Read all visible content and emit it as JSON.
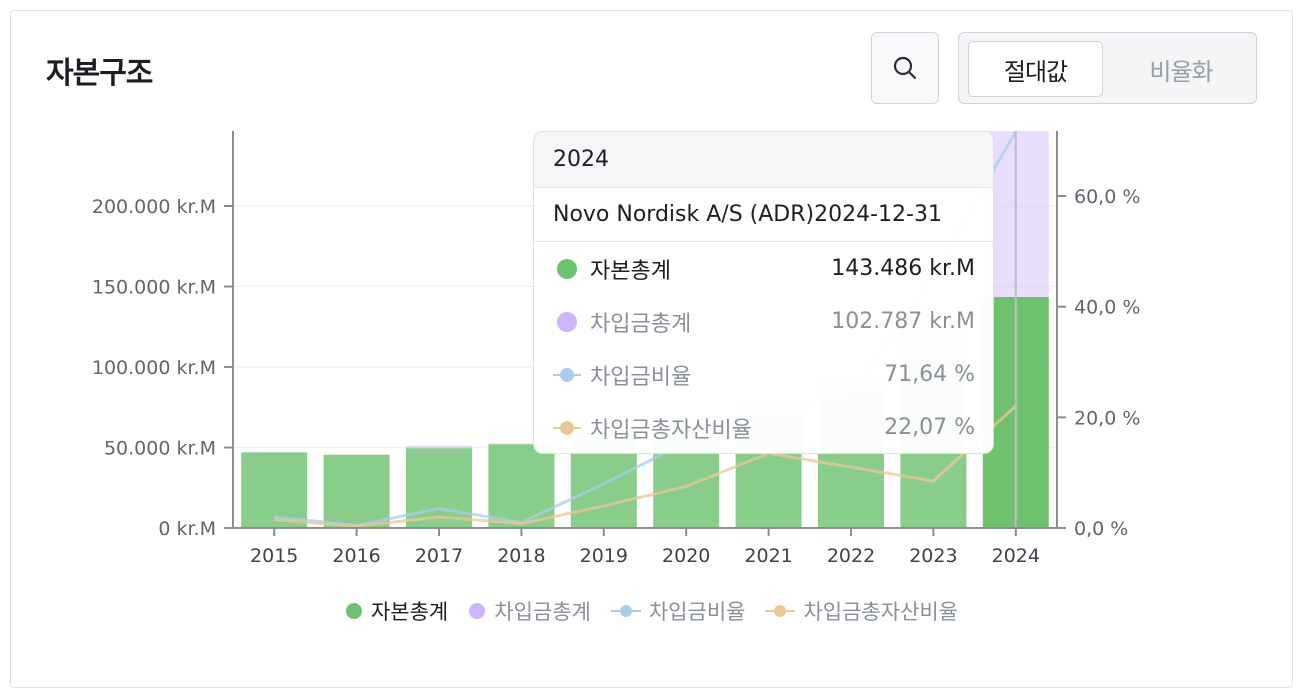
{
  "header": {
    "title": "자본구조",
    "search_icon": "search-icon"
  },
  "toggle": {
    "options": [
      "절대값",
      "비율화"
    ],
    "selected": "절대값"
  },
  "colors": {
    "equity": "#6ec26f",
    "debt": "#cdb5f7",
    "debt_ratio": "#a8cdee",
    "debt_to_assets": "#ebc896",
    "axis": "#888e97"
  },
  "chart_data": {
    "type": "bar",
    "categories": [
      "2015",
      "2016",
      "2017",
      "2018",
      "2019",
      "2020",
      "2021",
      "2022",
      "2023",
      "2024"
    ],
    "series": [
      {
        "name": "자본총계",
        "kind": "stacked-bar",
        "axis": "left",
        "values": [
          47000,
          45500,
          49500,
          52000,
          59000,
          64000,
          71000,
          84000,
          106000,
          143486
        ]
      },
      {
        "name": "차입금총계",
        "kind": "stacked-bar",
        "axis": "left",
        "values": [
          0,
          0,
          1500,
          500,
          1000,
          2000,
          6000,
          8000,
          20000,
          102787
        ]
      },
      {
        "name": "차입금비율",
        "kind": "line",
        "axis": "right",
        "values": [
          2.0,
          0.5,
          3.5,
          1.0,
          8.0,
          15.5,
          21.5,
          24.0,
          46.0,
          71.64
        ]
      },
      {
        "name": "차입금총자산비율",
        "kind": "line",
        "axis": "right",
        "values": [
          1.5,
          0.3,
          2.0,
          0.8,
          4.0,
          7.5,
          13.5,
          11.0,
          8.5,
          22.07
        ]
      }
    ],
    "left_axis": {
      "min": 0,
      "max": 200000,
      "ticks": [
        "0 kr.M",
        "50.000 kr.M",
        "100.000 kr.M",
        "150.000 kr.M",
        "200.000 kr.M"
      ],
      "tick_values": [
        0,
        50000,
        100000,
        150000,
        200000
      ]
    },
    "right_axis": {
      "min": 0,
      "max": 60,
      "ticks": [
        "0,0 %",
        "20,0 %",
        "40,0 %",
        "60,0 %"
      ],
      "tick_values": [
        0,
        20,
        40,
        60
      ]
    },
    "legend": [
      "자본총계",
      "차입금총계",
      "차입금비율",
      "차입금총자산비율"
    ],
    "legend_position": "bottom",
    "highlighted_category": "2024",
    "tooltip": {
      "title": "2024",
      "subtitle": "Novo Nordisk A/S (ADR)2024-12-31",
      "rows": [
        {
          "label": "자본총계",
          "value": "143.486 kr.M"
        },
        {
          "label": "차입금총계",
          "value": "102.787 kr.M"
        },
        {
          "label": "차입금비율",
          "value": "71,64 %"
        },
        {
          "label": "차입금총자산비율",
          "value": "22,07 %"
        }
      ]
    }
  }
}
